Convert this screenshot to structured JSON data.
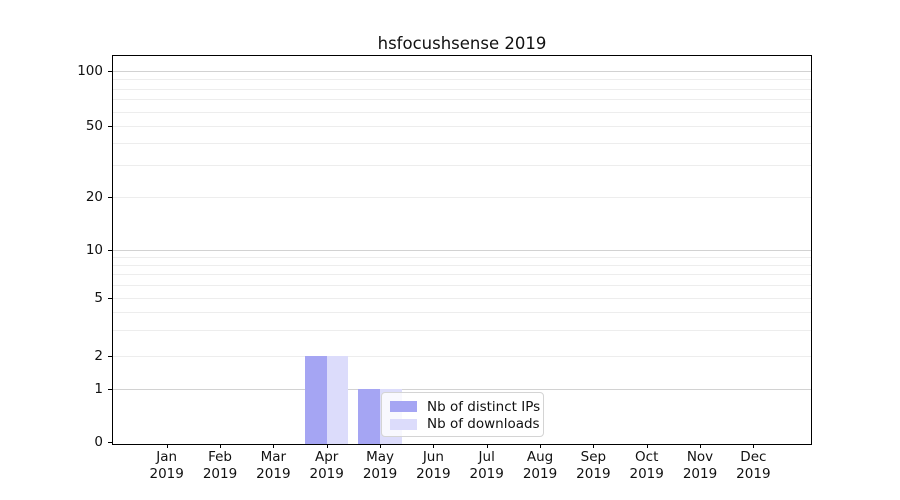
{
  "chart_data": {
    "type": "bar",
    "title": "hsfocushsense 2019",
    "categories": [
      {
        "month": "Jan",
        "year": "2019"
      },
      {
        "month": "Feb",
        "year": "2019"
      },
      {
        "month": "Mar",
        "year": "2019"
      },
      {
        "month": "Apr",
        "year": "2019"
      },
      {
        "month": "May",
        "year": "2019"
      },
      {
        "month": "Jun",
        "year": "2019"
      },
      {
        "month": "Jul",
        "year": "2019"
      },
      {
        "month": "Aug",
        "year": "2019"
      },
      {
        "month": "Sep",
        "year": "2019"
      },
      {
        "month": "Oct",
        "year": "2019"
      },
      {
        "month": "Nov",
        "year": "2019"
      },
      {
        "month": "Dec",
        "year": "2019"
      }
    ],
    "series": [
      {
        "name": "Nb of distinct IPs",
        "color": "#a5a5f3",
        "values": [
          0,
          0,
          0,
          2,
          1,
          0,
          0,
          0,
          0,
          0,
          0,
          0
        ]
      },
      {
        "name": "Nb of downloads",
        "color": "#dcdcfb",
        "values": [
          0,
          0,
          0,
          2,
          1,
          0,
          0,
          0,
          0,
          0,
          0,
          0
        ]
      }
    ],
    "yscale": "symlog",
    "ylim": [
      0,
      110
    ],
    "ytick_values": [
      0,
      1,
      2,
      5,
      10,
      20,
      50,
      100
    ],
    "major_grid_values": [
      1,
      10,
      100
    ],
    "minor_grid_values": [
      2,
      3,
      4,
      5,
      6,
      7,
      8,
      9,
      20,
      30,
      40,
      50,
      60,
      70,
      80,
      90
    ],
    "grid": true,
    "legend_position": "lower center"
  }
}
